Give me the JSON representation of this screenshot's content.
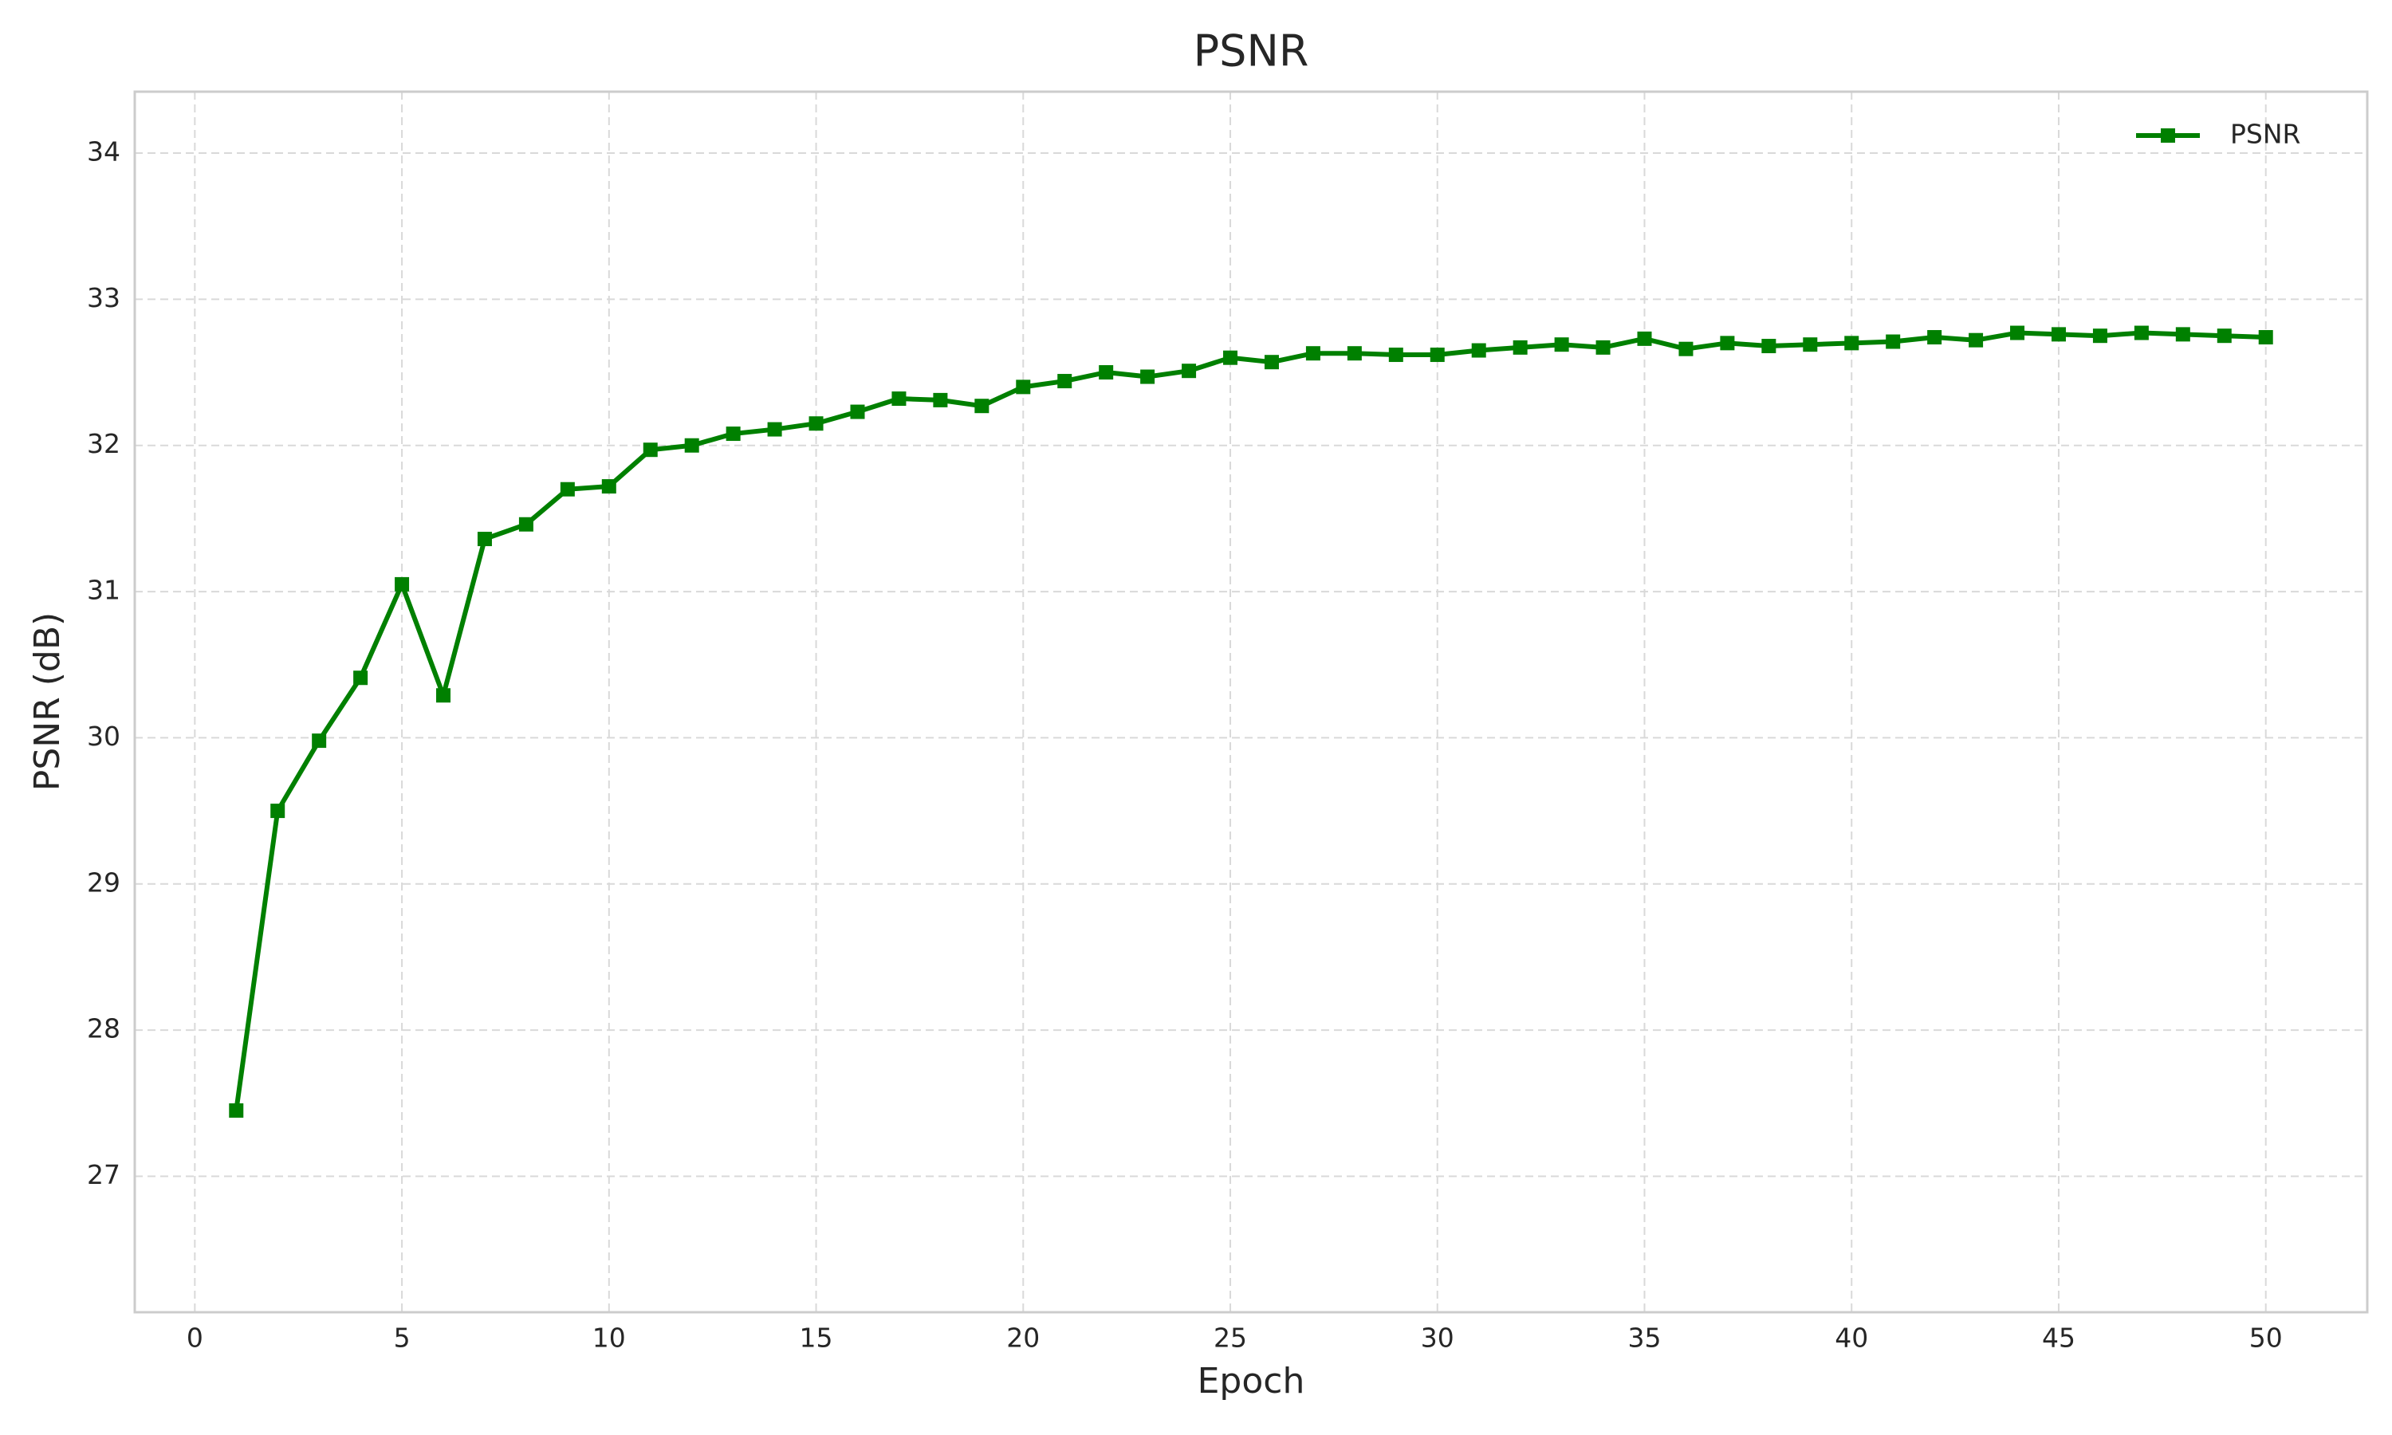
{
  "chart_data": {
    "type": "line",
    "title": "PSNR",
    "x_label": "Epoch",
    "y_label": "PSNR (dB)",
    "x": [
      1,
      2,
      3,
      4,
      5,
      6,
      7,
      8,
      9,
      10,
      11,
      12,
      13,
      14,
      15,
      16,
      17,
      18,
      19,
      20,
      21,
      22,
      23,
      24,
      25,
      26,
      27,
      28,
      29,
      30,
      31,
      32,
      33,
      34,
      35,
      36,
      37,
      38,
      39,
      40,
      41,
      42,
      43,
      44,
      45,
      46,
      47,
      48,
      49,
      50
    ],
    "series": [
      {
        "name": "PSNR",
        "color": "#008000",
        "marker": "square",
        "values": [
          27.45,
          29.5,
          29.98,
          30.41,
          31.05,
          30.29,
          31.36,
          31.46,
          31.7,
          31.72,
          31.97,
          32.0,
          32.08,
          32.11,
          32.15,
          32.23,
          32.32,
          32.31,
          32.27,
          32.4,
          32.44,
          32.5,
          32.47,
          32.51,
          32.6,
          32.57,
          32.63,
          32.63,
          32.62,
          32.62,
          32.65,
          32.67,
          32.69,
          32.67,
          32.73,
          32.66,
          32.7,
          32.68,
          32.69,
          32.7,
          32.71,
          32.74,
          32.72,
          32.77,
          32.76,
          32.75,
          32.77,
          32.76,
          32.75,
          32.74
        ]
      }
    ],
    "xlim": [
      -1.45,
      52.45
    ],
    "xticks": [
      0,
      5,
      10,
      15,
      20,
      25,
      30,
      35,
      40,
      45,
      50
    ],
    "ylim": [
      26.07,
      34.42
    ],
    "yticks": [
      27,
      28,
      29,
      30,
      31,
      32,
      33,
      34
    ],
    "grid": true,
    "legend": "upper right"
  }
}
